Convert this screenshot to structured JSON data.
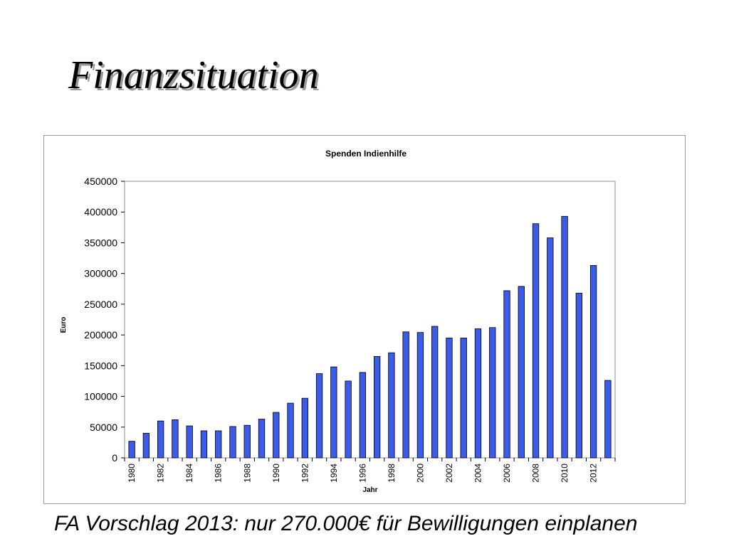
{
  "slide": {
    "title": "Finanzsituation",
    "footer": "FA Vorschlag 2013: nur 270.000€ für Bewilligungen einplanen"
  },
  "chart_data": {
    "type": "bar",
    "title": "Spenden Indienhilfe",
    "xlabel": "Jahr",
    "ylabel": "Euro",
    "ylim": [
      0,
      450000
    ],
    "yticks": [
      0,
      50000,
      100000,
      150000,
      200000,
      250000,
      300000,
      350000,
      400000,
      450000
    ],
    "categories": [
      1980,
      1981,
      1982,
      1983,
      1984,
      1985,
      1986,
      1987,
      1988,
      1989,
      1990,
      1991,
      1992,
      1993,
      1994,
      1995,
      1996,
      1997,
      1998,
      1999,
      2000,
      2001,
      2002,
      2003,
      2004,
      2005,
      2006,
      2007,
      2008,
      2009,
      2010,
      2011,
      2012,
      2013
    ],
    "tick_labels": [
      "1980",
      "1982",
      "1984",
      "1986",
      "1988",
      "1990",
      "1992",
      "1994",
      "1996",
      "1998",
      "2000",
      "2002",
      "2004",
      "2006",
      "2008",
      "2010",
      "2012"
    ],
    "values": [
      27000,
      40000,
      60000,
      62000,
      52000,
      44000,
      44000,
      51000,
      53000,
      63000,
      74000,
      89000,
      97000,
      137000,
      148000,
      125000,
      139000,
      165000,
      171000,
      205000,
      204000,
      214000,
      195000,
      195000,
      210000,
      212000,
      272000,
      279000,
      381000,
      358000,
      393000,
      268000,
      313000,
      126000
    ],
    "bar_color": "#3b5be8",
    "bar_stroke": "#000000",
    "grid": false,
    "legend": "none"
  }
}
